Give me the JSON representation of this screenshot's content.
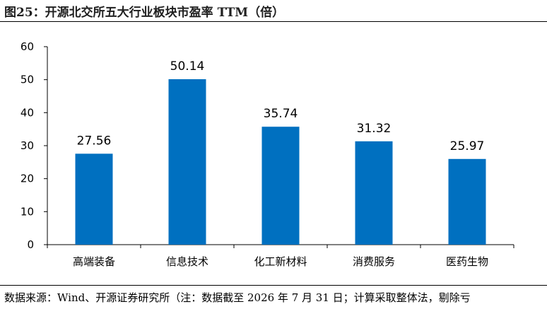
{
  "figure": {
    "title": "图25：开源北交所五大行业板块市盈率 TTM（倍）",
    "source": "数据来源：Wind、开源证券研究所（注：数据截至 2026 年 7 月 31 日；计算采取整体法，剔除亏"
  },
  "chart_data": {
    "type": "bar",
    "title": "",
    "xlabel": "",
    "ylabel": "",
    "categories": [
      "高端装备",
      "信息技术",
      "化工新材料",
      "消费服务",
      "医药生物"
    ],
    "values": [
      27.56,
      50.14,
      35.74,
      31.32,
      25.97
    ],
    "value_labels": [
      "27.56",
      "50.14",
      "35.74",
      "31.32",
      "25.97"
    ],
    "ylim": [
      0,
      60
    ],
    "yticks": [
      0,
      10,
      20,
      30,
      40,
      50,
      60
    ],
    "grid": false,
    "legend": "none",
    "bar_color": "#0070C0"
  }
}
